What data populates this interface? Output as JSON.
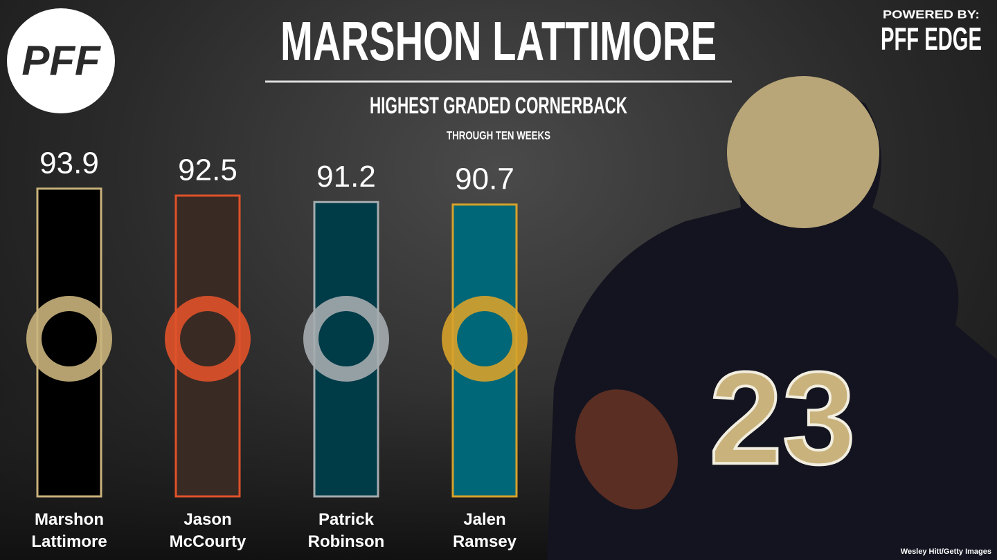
{
  "chart_data": {
    "type": "bar",
    "title": "MARSHON LATTIMORE",
    "subtitle": "HIGHEST GRADED CORNERBACK",
    "note": "THROUGH TEN WEEKS",
    "logo": "PFF",
    "powered_by": "POWERED BY:",
    "brand": "PFF EDGE",
    "credit": "Wesley Hitt/Getty Images",
    "categories": [
      "Marshon Lattimore",
      "Jason McCourty",
      "Patrick Robinson",
      "Jalen Ramsey"
    ],
    "values": [
      93.9,
      92.5,
      91.2,
      90.7
    ],
    "colors": [
      "#000000",
      "#3a2a24",
      "#003b48",
      "#006778"
    ],
    "border_colors": [
      "#c9b27c",
      "#e0522a",
      "#a5acaf",
      "#d7a22a"
    ],
    "ylim": [
      32,
      100
    ]
  }
}
